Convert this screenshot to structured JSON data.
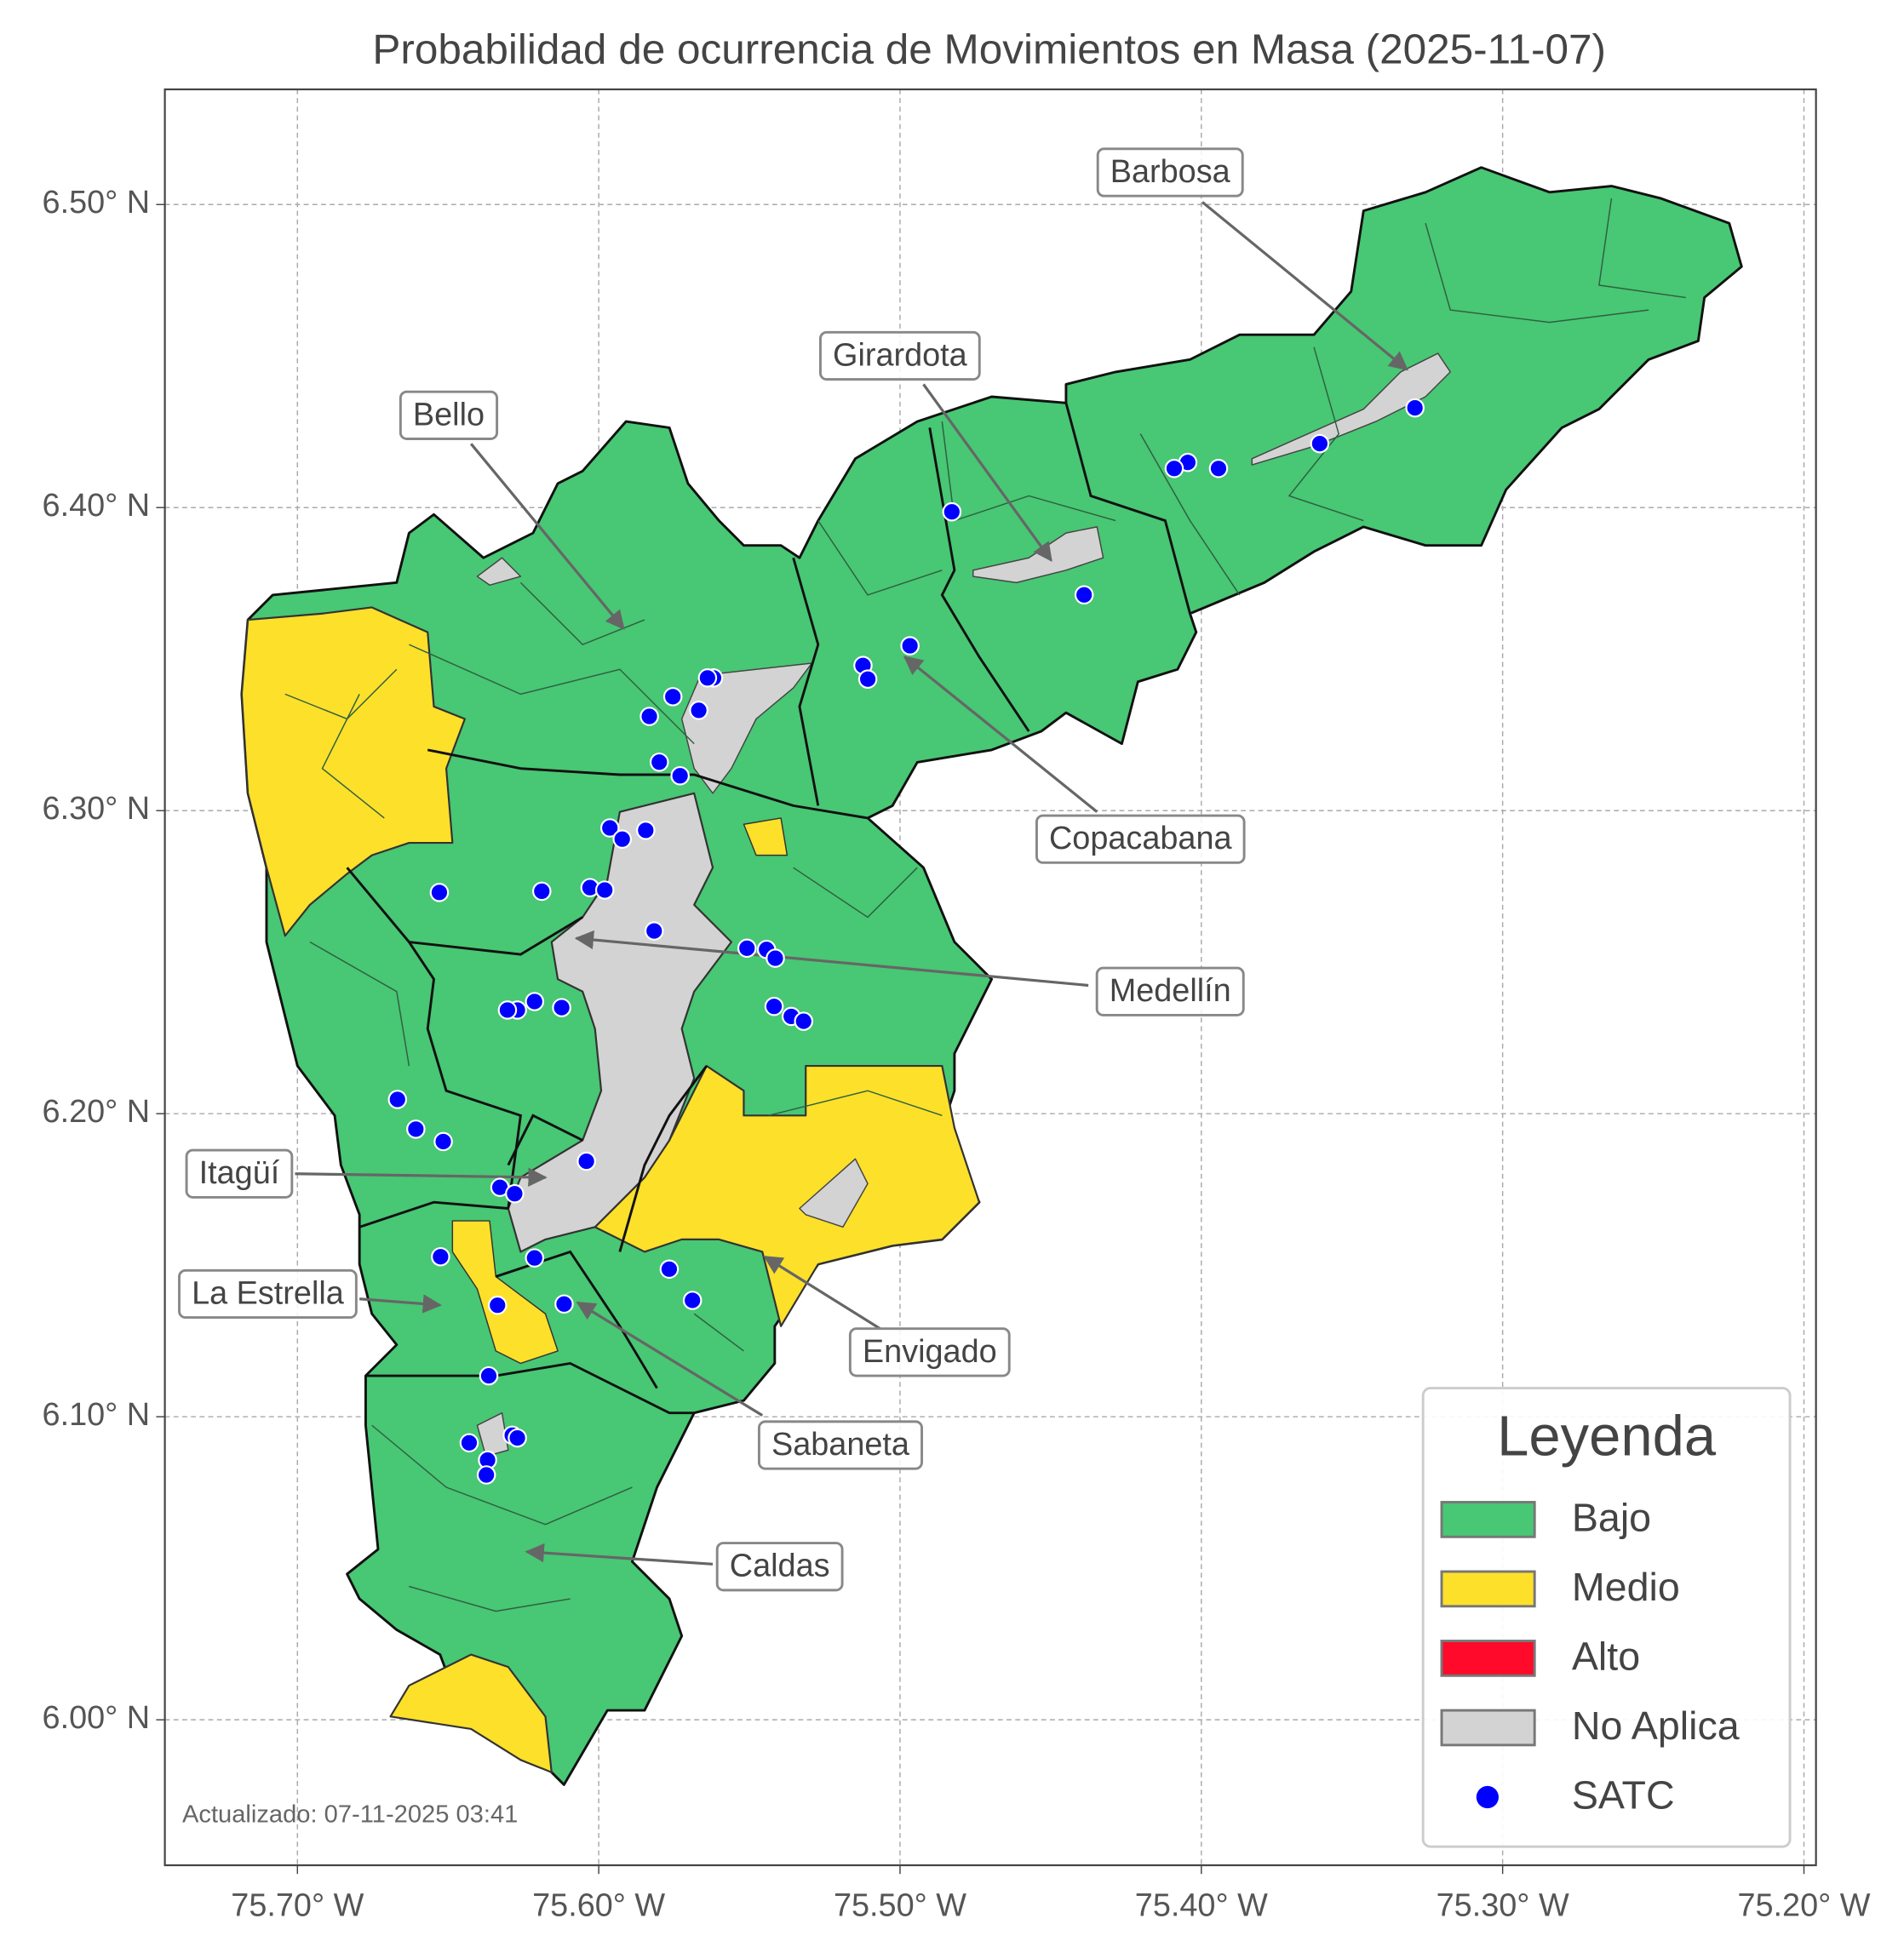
{
  "chart_data": {
    "type": "map",
    "title": "Probabilidad de ocurrencia de Movimientos en Masa (2025-11-07)",
    "xlim": [
      -75.744,
      -75.196
    ],
    "ylim": [
      5.952,
      6.538
    ],
    "xticks": [
      {
        "value": -75.7,
        "label": "75.70° W"
      },
      {
        "value": -75.6,
        "label": "75.60° W"
      },
      {
        "value": -75.5,
        "label": "75.50° W"
      },
      {
        "value": -75.4,
        "label": "75.40° W"
      },
      {
        "value": -75.3,
        "label": "75.30° W"
      },
      {
        "value": -75.2,
        "label": "75.20° W"
      }
    ],
    "yticks": [
      {
        "value": 6.0,
        "label": "6.00° N"
      },
      {
        "value": 6.1,
        "label": "6.10° N"
      },
      {
        "value": 6.2,
        "label": "6.20° N"
      },
      {
        "value": 6.3,
        "label": "6.30° N"
      },
      {
        "value": 6.4,
        "label": "6.40° N"
      },
      {
        "value": 6.5,
        "label": "6.50° N"
      }
    ],
    "grid": true,
    "annotations": [
      "Barbosa",
      "Girardota",
      "Bello",
      "Copacabana",
      "Medellín",
      "Itagüí",
      "La Estrella",
      "Envigado",
      "Sabaneta",
      "Caldas"
    ],
    "legend": {
      "title": "Leyenda",
      "loc": "lower right",
      "entries": [
        {
          "name": "Bajo",
          "color": "#48c774"
        },
        {
          "name": "Medio",
          "color": "#fde02a"
        },
        {
          "name": "Alto",
          "color": "#ff0a2a"
        },
        {
          "name": "No Aplica",
          "color": "#d3d3d3"
        }
      ]
    },
    "series": [
      {
        "name": "SATC",
        "color": "#0000ff",
        "x": [
          -75.3291,
          -75.3607,
          -75.3943,
          -75.4045,
          -75.409,
          -75.4828,
          -75.4389,
          -75.4967,
          -75.5123,
          -75.5107,
          -75.5619,
          -75.5639,
          -75.5754,
          -75.5668,
          -75.5832,
          -75.5799,
          -75.573,
          -75.5963,
          -75.5922,
          -75.5844,
          -75.6529,
          -75.6189,
          -75.6029,
          -75.598,
          -75.5816,
          -75.5508,
          -75.5443,
          -75.5414,
          -75.5418,
          -75.5361,
          -75.532,
          -75.6123,
          -75.6213,
          -75.627,
          -75.6303,
          -75.6668,
          -75.6607,
          -75.6516,
          -75.6041,
          -75.6328,
          -75.6279,
          -75.6525,
          -75.6213,
          -75.5766,
          -75.5689,
          -75.6115,
          -75.6336,
          -75.6365,
          -75.643,
          -75.6287,
          -75.627,
          -75.6369,
          -75.6373
        ],
        "y": [
          6.4329,
          6.4211,
          6.4129,
          6.4149,
          6.4129,
          6.3986,
          6.3712,
          6.3544,
          6.3479,
          6.3434,
          6.3438,
          6.3438,
          6.3376,
          6.3331,
          6.3311,
          6.316,
          6.3115,
          6.2943,
          6.2906,
          6.2935,
          6.273,
          6.2734,
          6.2746,
          6.2738,
          6.2603,
          6.2546,
          6.2542,
          6.2513,
          6.2354,
          6.2321,
          6.2305,
          6.235,
          6.237,
          6.2342,
          6.2342,
          6.2047,
          6.1949,
          6.1908,
          6.1843,
          6.1757,
          6.1736,
          6.1528,
          6.1524,
          6.1487,
          6.1384,
          6.1372,
          6.1368,
          6.1135,
          6.0914,
          6.0939,
          6.093,
          6.0857,
          6.0808
        ]
      }
    ],
    "footnote": "Actualizado: 07-11-2025 03:41"
  }
}
